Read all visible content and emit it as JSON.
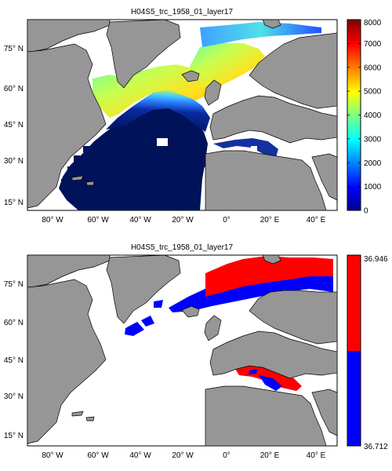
{
  "maps": [
    {
      "title": "H04S5_trc_1958_01_layer17",
      "lat_ticks": [
        "75° N",
        "60° N",
        "45° N",
        "30° N",
        "15° N"
      ],
      "lon_ticks": [
        "80° W",
        "60° W",
        "40° W",
        "20° W",
        "0°",
        "20° E",
        "40° E"
      ],
      "colorbar": {
        "type": "jet",
        "min": 0,
        "max": 8000,
        "tick_labels": [
          "0",
          "1000",
          "2000",
          "3000",
          "4000",
          "5000",
          "6000",
          "7000",
          "8000"
        ]
      }
    },
    {
      "title": "H04S5_trc_1958_01_layer17",
      "lat_ticks": [
        "75° N",
        "60° N",
        "45° N",
        "30° N",
        "15° N"
      ],
      "lon_ticks": [
        "80° W",
        "60° W",
        "40° W",
        "20° W",
        "0°",
        "20° E",
        "40° E"
      ],
      "colorbar": {
        "type": "two-class",
        "tick_labels": [
          "36.946",
          "36.712"
        ],
        "colors": [
          "#ff0000",
          "#0000ff"
        ]
      }
    }
  ]
}
